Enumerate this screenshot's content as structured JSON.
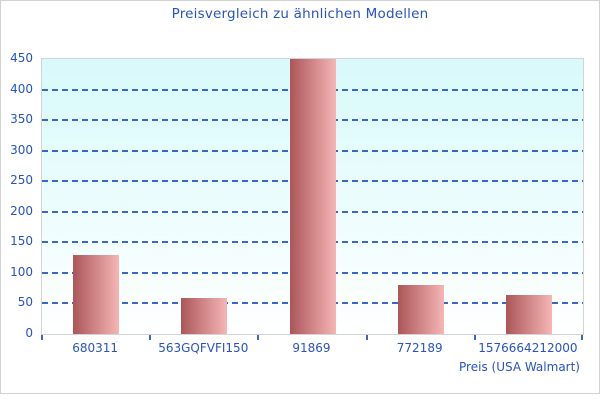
{
  "chart_data": {
    "type": "bar",
    "title": "Preisvergleich zu ähnlichen Modellen",
    "categories": [
      "680311",
      "563GQFVFI150",
      "91869",
      "772189",
      "1576664212000"
    ],
    "values": [
      130,
      59,
      450,
      80,
      64
    ],
    "xlabel": "Preis (USA Walmart)",
    "ylabel": "",
    "ylim": [
      0,
      450
    ],
    "yticks": [
      0,
      50,
      100,
      150,
      200,
      250,
      300,
      350,
      400,
      450
    ],
    "grid": "horizontal-dashed",
    "legend_position": "none",
    "colors": {
      "title_text": "#2853c6",
      "axis_text": "#2853c6",
      "gridline": "#3a66cc",
      "tick_mark": "#3a66cc",
      "bar_gradient_left": "#ab5658",
      "bar_gradient_right": "#f6b6b6",
      "plot_bg_top": "#d7fafb",
      "plot_bg_bottom": "#ffffff",
      "plot_border": "#d4d4d4",
      "frame_border": "#d2d2d2"
    }
  }
}
